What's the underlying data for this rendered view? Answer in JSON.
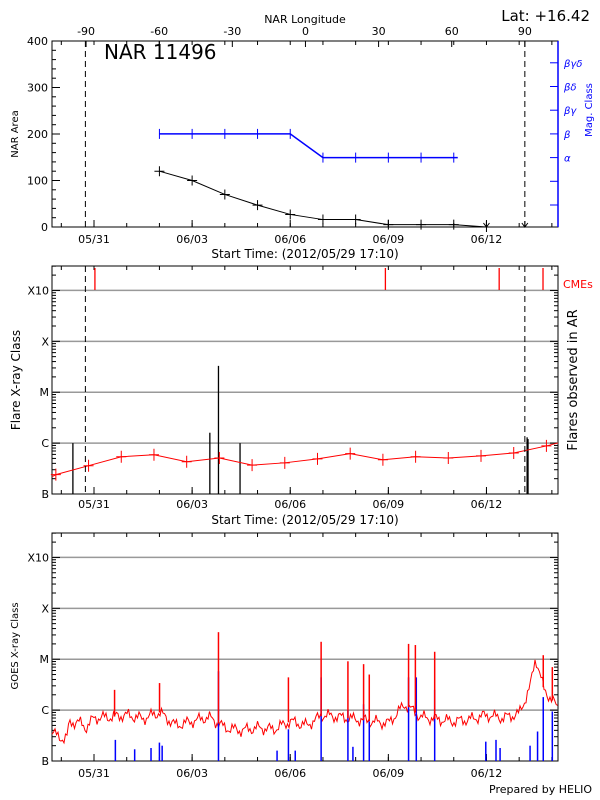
{
  "header": {
    "lat_label": "Lat: +16.42",
    "region_title": "NAR 11496"
  },
  "footer": {
    "prepared_by": "Prepared by HELIO"
  },
  "colors": {
    "area": "#000000",
    "mag_class": "#0000ff",
    "flare": "#ff0000",
    "cme": "#ff0000",
    "goes_long": "#ff0000",
    "goes_short": "#0000ff",
    "grid": "#999999"
  },
  "time_axis": {
    "range": [
      "2012-05-29 17:10",
      "2012-06-14 04:30"
    ],
    "ticks": [
      {
        "date": "2012-05-31 00:00",
        "label": "05/31"
      },
      {
        "date": "2012-06-03 00:00",
        "label": "06/03"
      },
      {
        "date": "2012-06-06 00:00",
        "label": "06/06"
      },
      {
        "date": "2012-06-09 00:00",
        "label": "06/09"
      },
      {
        "date": "2012-06-12 00:00",
        "label": "06/12"
      }
    ],
    "xlabel": "Start Time: (2012/05/29 17:10)"
  },
  "limb_markers": [
    "2012-05-30 17:40",
    "2012-06-13 04:10"
  ],
  "chart_data": [
    {
      "type": "line",
      "title": "NAR 11496",
      "ylabel": "NAR Area",
      "ylim": [
        0,
        400
      ],
      "yticks": [
        "0",
        "100",
        "200",
        "300",
        "400"
      ],
      "top_axis": {
        "label": "NAR Longitude",
        "ticks": [
          "-90",
          "-60",
          "-30",
          "0",
          "30",
          "60",
          "90"
        ],
        "reference": {
          "lon_min": -90,
          "date_min": "2012-05-30 18:10",
          "lon_max": 90,
          "date_max": "2012-06-13 04:10"
        }
      },
      "area_series": {
        "x": [
          "2012-06-02 00:00",
          "2012-06-03 00:00",
          "2012-06-04 00:00",
          "2012-06-05 00:00",
          "2012-06-06 00:00",
          "2012-06-07 00:00",
          "2012-06-08 00:00",
          "2012-06-09 00:00",
          "2012-06-10 00:00",
          "2012-06-11 00:00",
          "2012-06-12 00:00"
        ],
        "y": [
          120,
          100,
          70,
          47,
          27,
          16,
          16,
          5,
          5,
          5,
          0
        ],
        "below_axis_markers": [
          "2012-06-12 00:00",
          "2012-06-13 04:10"
        ]
      },
      "mag_class_axis": {
        "label": "Mag. Class",
        "ticks": [
          "",
          "",
          "α",
          "β",
          "βγ",
          "βδ",
          "βγδ"
        ]
      },
      "mag_class_series": {
        "x": [
          "2012-06-02 00:00",
          "2012-06-03 00:00",
          "2012-06-04 00:00",
          "2012-06-05 00:00",
          "2012-06-06 00:00",
          "2012-06-07 00:00",
          "2012-06-08 00:00",
          "2012-06-09 00:00",
          "2012-06-10 00:00",
          "2012-06-11 00:00"
        ],
        "y": [
          "β",
          "β",
          "β",
          "β",
          "β",
          "α",
          "α",
          "α",
          "α",
          "α"
        ]
      }
    },
    {
      "type": "line",
      "ylabel": "Flare X-ray Class",
      "right_label": "Flares observed in AR",
      "yscale": "log",
      "yticks": [
        "B",
        "C",
        "M",
        "X",
        "X10"
      ],
      "grid": true,
      "cme_label": "CMEs",
      "cmes": [
        "2012-05-31 00:40",
        "2012-06-08 21:50",
        "2012-06-12 09:20",
        "2012-06-13 17:30"
      ],
      "daily_flare_series": {
        "x": [
          "2012-05-29 20:00",
          "2012-05-30 20:00",
          "2012-05-31 20:00",
          "2012-06-01 20:00",
          "2012-06-02 20:00",
          "2012-06-03 20:00",
          "2012-06-04 20:00",
          "2012-06-05 20:00",
          "2012-06-06 20:00",
          "2012-06-07 20:00",
          "2012-06-08 20:00",
          "2012-06-09 20:00",
          "2012-06-10 20:00",
          "2012-06-11 20:00",
          "2012-06-12 20:00",
          "2012-06-13 20:00"
        ],
        "y": [
          "B2.4",
          "B3.6",
          "B5.4",
          "B5.9",
          "B4.3",
          "B5.1",
          "B3.7",
          "B4.1",
          "B4.9",
          "B6.2",
          "B4.7",
          "B5.4",
          "B5.1",
          "B5.6",
          "B6.4",
          "B8.8"
        ]
      },
      "ar_flares": [
        {
          "date": "2012-05-30 08:30",
          "class": "C1.0"
        },
        {
          "date": "2012-06-03 13:00",
          "class": "C1.6"
        },
        {
          "date": "2012-06-03 19:20",
          "class": "M3.3"
        },
        {
          "date": "2012-06-04 11:10",
          "class": "C1.0"
        },
        {
          "date": "2012-06-13 05:50",
          "class": "C1.3"
        },
        {
          "date": "2012-06-13 06:30",
          "class": "C1.2"
        }
      ]
    },
    {
      "type": "line",
      "ylabel": "GOES X-ray Class",
      "yscale": "log",
      "yticks": [
        "B",
        "C",
        "M",
        "X",
        "X10"
      ],
      "grid": true,
      "long_channel_baseline": {
        "x": [
          "2012-05-29 17:10",
          "2012-05-29 22:00",
          "2012-05-30 04:00",
          "2012-05-30 06:00",
          "2012-05-30 12:00",
          "2012-05-30 18:00",
          "2012-05-31 00:00",
          "2012-05-31 12:00",
          "2012-06-01 00:00",
          "2012-06-01 12:00",
          "2012-06-02 00:00",
          "2012-06-02 12:00",
          "2012-06-03 00:00",
          "2012-06-03 12:00",
          "2012-06-04 00:00",
          "2012-06-04 12:00",
          "2012-06-05 00:00",
          "2012-06-05 12:00",
          "2012-06-06 00:00",
          "2012-06-06 12:00",
          "2012-06-07 00:00",
          "2012-06-07 12:00",
          "2012-06-08 00:00",
          "2012-06-08 12:00",
          "2012-06-09 00:00",
          "2012-06-09 12:00",
          "2012-06-10 00:00",
          "2012-06-10 12:00",
          "2012-06-11 00:00",
          "2012-06-11 12:00",
          "2012-06-12 00:00",
          "2012-06-12 12:00",
          "2012-06-13 00:00",
          "2012-06-13 08:00",
          "2012-06-13 12:00",
          "2012-06-13 18:00",
          "2012-06-14 04:30"
        ],
        "y": [
          "B4.0",
          "B2.8",
          "B2.9",
          "B5.5",
          "B6.0",
          "B4.5",
          "B7.0",
          "B7.3",
          "B8.0",
          "B6.8",
          "B9.0",
          "B5.0",
          "B6.0",
          "B7.3",
          "B4.5",
          "B4.0",
          "B4.5",
          "B4.2",
          "B6.0",
          "B5.0",
          "B8.0",
          "B7.3",
          "B6.6",
          "B6.0",
          "B5.5",
          "C1.3",
          "B7.3",
          "B6.6",
          "B6.0",
          "B6.6",
          "B8.0",
          "B7.0",
          "B8.5",
          "C2.8",
          "M1.1",
          "C2.6",
          "C1.1"
        ]
      },
      "long_channel_peaks": [
        {
          "date": "2012-05-31 15:05",
          "class": "C2.5"
        },
        {
          "date": "2012-06-02 00:05",
          "class": "C3.4"
        },
        {
          "date": "2012-06-03 19:20",
          "class": "M3.4"
        },
        {
          "date": "2012-06-05 22:40",
          "class": "C4.4"
        },
        {
          "date": "2012-06-06 22:40",
          "class": "M2.2"
        },
        {
          "date": "2012-06-07 18:20",
          "class": "C9.1"
        },
        {
          "date": "2012-06-08 05:50",
          "class": "C8.0"
        },
        {
          "date": "2012-06-08 10:00",
          "class": "C5.0"
        },
        {
          "date": "2012-06-09 14:50",
          "class": "M2.0"
        },
        {
          "date": "2012-06-09 19:50",
          "class": "M1.9"
        },
        {
          "date": "2012-06-10 10:00",
          "class": "M1.4"
        },
        {
          "date": "2012-06-13 17:40",
          "class": "M1.2"
        },
        {
          "date": "2012-06-14 00:20",
          "class": "C7.0"
        }
      ],
      "short_channel_peaks": [
        {
          "date": "2012-05-31 15:40",
          "class": "B2.6"
        },
        {
          "date": "2012-06-01 05:50",
          "class": "B1.7"
        },
        {
          "date": "2012-06-01 17:50",
          "class": "B1.8"
        },
        {
          "date": "2012-06-02 00:00",
          "class": "B2.3"
        },
        {
          "date": "2012-06-02 02:00",
          "class": "B2.0"
        },
        {
          "date": "2012-06-03 19:20",
          "class": "C5.8"
        },
        {
          "date": "2012-06-05 14:20",
          "class": "B1.6"
        },
        {
          "date": "2012-06-05 22:40",
          "class": "B4.2"
        },
        {
          "date": "2012-06-06 03:40",
          "class": "B1.6"
        },
        {
          "date": "2012-06-06 22:40",
          "class": "C4.4"
        },
        {
          "date": "2012-06-07 18:20",
          "class": "C1.0"
        },
        {
          "date": "2012-06-07 22:00",
          "class": "B1.9"
        },
        {
          "date": "2012-06-08 05:50",
          "class": "C1.3"
        },
        {
          "date": "2012-06-08 10:00",
          "class": "B6.0"
        },
        {
          "date": "2012-06-09 14:50",
          "class": "C4.4"
        },
        {
          "date": "2012-06-09 20:30",
          "class": "C4.4"
        },
        {
          "date": "2012-06-10 10:00",
          "class": "C2.5"
        },
        {
          "date": "2012-06-11 23:30",
          "class": "B2.4"
        },
        {
          "date": "2012-06-12 07:00",
          "class": "B2.6"
        },
        {
          "date": "2012-06-12 10:00",
          "class": "B1.8"
        },
        {
          "date": "2012-06-13 08:00",
          "class": "B2.0"
        },
        {
          "date": "2012-06-13 13:30",
          "class": "B3.8"
        },
        {
          "date": "2012-06-13 17:40",
          "class": "C1.8"
        },
        {
          "date": "2012-06-14 00:20",
          "class": "B9.4"
        }
      ]
    }
  ]
}
